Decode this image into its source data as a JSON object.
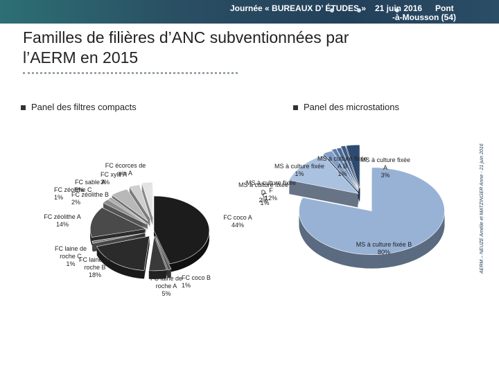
{
  "header": {
    "event": "Journée « BUREAUX D’ ÉTUDES »",
    "date": "21 juin 2016",
    "place_line1": "Pont",
    "place_line2": "-à-Mousson (54)"
  },
  "slide": {
    "title": "Familles de filières d’ANC subventionnées par l’AERM en 2015"
  },
  "side_credit": "AERM – NEUZE Amélie et MATZINGER Anne - 21 juin 2016",
  "chart_data": [
    {
      "type": "pie",
      "title": "Panel des filtres compacts",
      "slices": [
        {
          "label": "FC coco A",
          "value": 44,
          "display": "44%",
          "color": "#1c1c1c"
        },
        {
          "label": "FC coco B",
          "value": 1,
          "display": "1%",
          "color": "#5a5a5a"
        },
        {
          "label": "FC laine de roche A",
          "value": 5,
          "display": "5%",
          "color": "#3a3a3a"
        },
        {
          "label": "FC laine de roche B",
          "value": 18,
          "display": "18%",
          "color": "#2b2b2b"
        },
        {
          "label": "FC laine de roche C",
          "value": 1,
          "display": "1%",
          "color": "#777777"
        },
        {
          "label": "FC zéolithe A",
          "value": 14,
          "display": "14%",
          "color": "#4a4a4a"
        },
        {
          "label": "FC zéolithe B",
          "value": 2,
          "display": "2%",
          "color": "#8c8c8c"
        },
        {
          "label": "FC zéolithe C",
          "value": 1,
          "display": "1%",
          "color": "#a6a6a6"
        },
        {
          "label": "FC sable A",
          "value": 5,
          "display": "5%",
          "color": "#b8b8b8"
        },
        {
          "label": "FC xylit A",
          "value": 3,
          "display": "3%",
          "color": "#cfcfcf"
        },
        {
          "label": "FC écorces de pin A",
          "value": 3,
          "display": "",
          "color": "#e3e3e3"
        }
      ]
    },
    {
      "type": "pie",
      "title": "Panel des microstations",
      "slices": [
        {
          "label": "MS à culture fixée B",
          "value": 80,
          "display": "80%",
          "color": "#98b2d5"
        },
        {
          "label": "MS à culture fixée F",
          "value": 12,
          "display": "12%",
          "color": "#aac1e0"
        },
        {
          "label": "MS à culture fixée D",
          "value": 2,
          "display": "2%",
          "color": "#7f9ec8"
        },
        {
          "label": "MS à culture fixée C",
          "value": 1,
          "display": "1%",
          "color": "#5f7fab"
        },
        {
          "label": "MS à culture fixée A",
          "value": 1,
          "display": "1%",
          "color": "#4a6a96"
        },
        {
          "label": "MS à culture fixée B",
          "value": 1,
          "display": "1%",
          "color": "#3c5a84"
        },
        {
          "label": "MS à culture fixée A",
          "value": 3,
          "display": "3%",
          "color": "#2e4a70"
        }
      ]
    }
  ]
}
